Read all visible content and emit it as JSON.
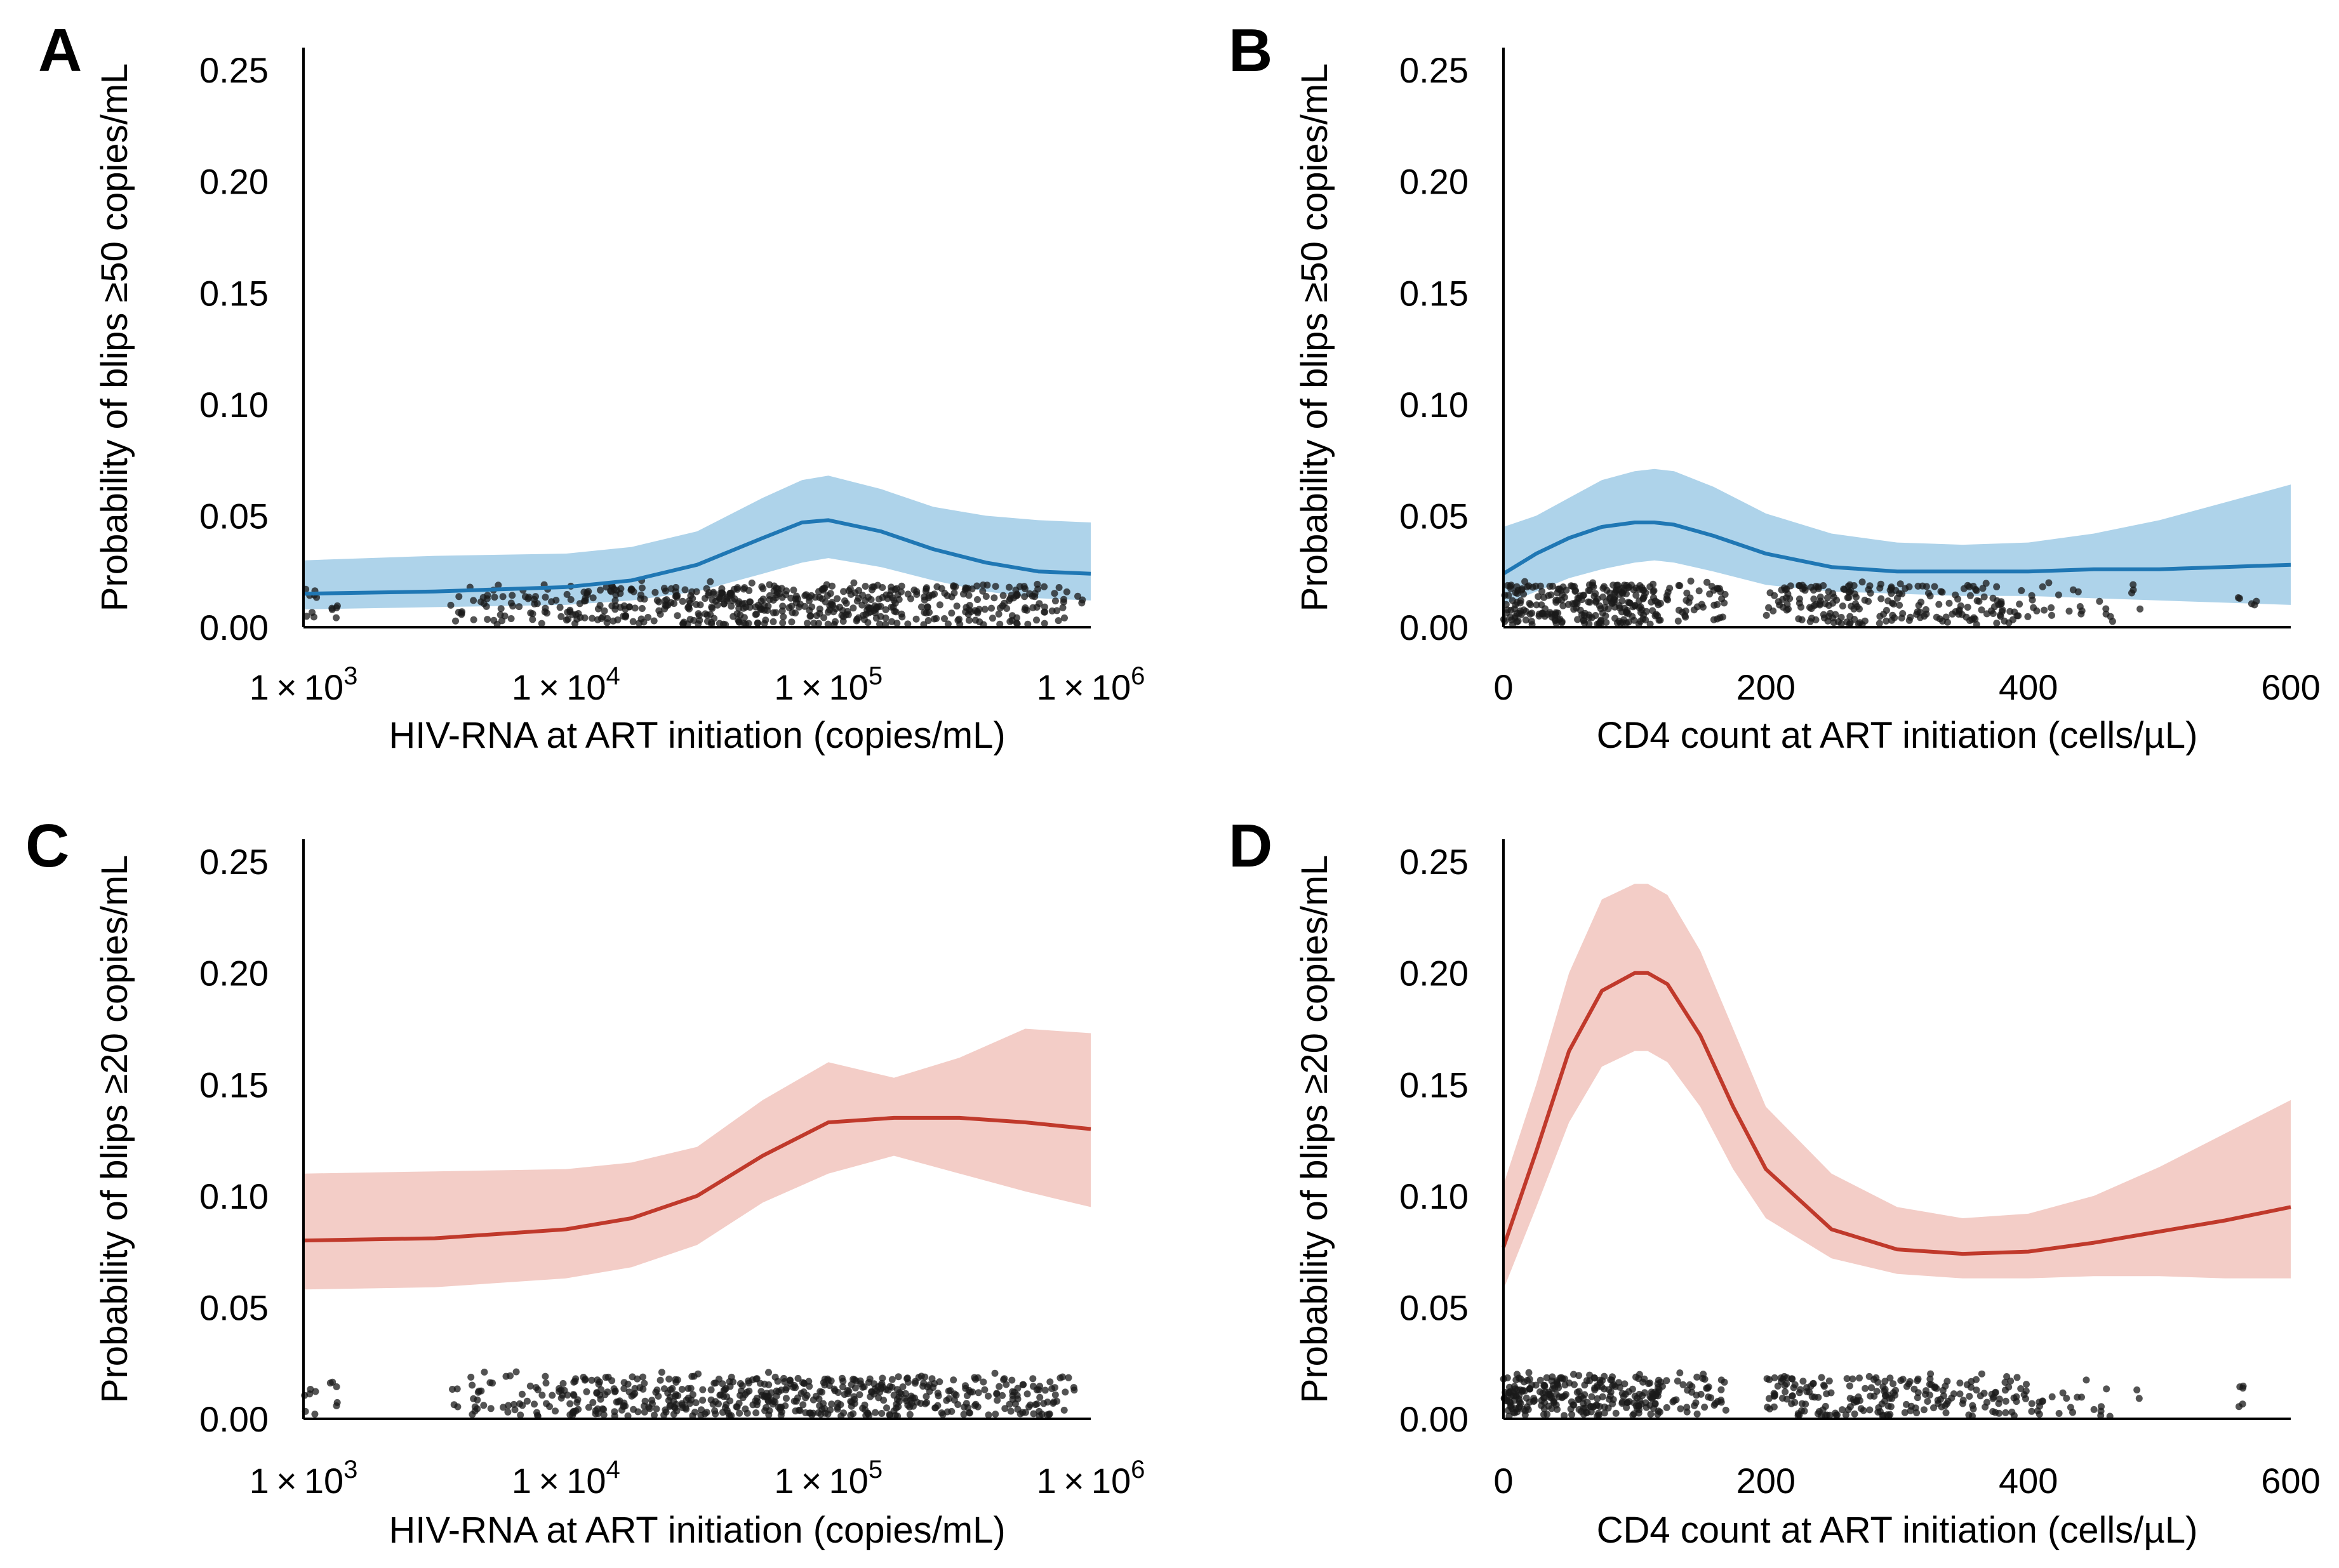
{
  "colors": {
    "blue_line": "#1f77b4",
    "blue_band": "#aed3ea",
    "red_line": "#c0392b",
    "red_band": "#f3cdc7",
    "points": "#1a1a1a",
    "axis": "#000000"
  },
  "chart_data": [
    {
      "panel": "A",
      "type": "line",
      "x_scale": "log10",
      "xlabel": "HIV-RNA at ART initiation (copies/mL)",
      "ylabel": "Probability of blips ≥50 copies/mL",
      "xlim": [
        3,
        6
      ],
      "ylim": [
        0,
        0.26
      ],
      "x_ticks": [
        {
          "value": 3,
          "label_base": "1 × 10",
          "label_exp": "3"
        },
        {
          "value": 4,
          "label_base": "1 × 10",
          "label_exp": "4"
        },
        {
          "value": 5,
          "label_base": "1 × 10",
          "label_exp": "5"
        },
        {
          "value": 6,
          "label_base": "1 × 10",
          "label_exp": "6"
        }
      ],
      "y_ticks": [
        "0.00",
        "0.05",
        "0.10",
        "0.15",
        "0.20",
        "0.25"
      ],
      "y_tick_values": [
        0,
        0.05,
        0.1,
        0.15,
        0.2,
        0.25
      ],
      "series": [
        {
          "name": "fit",
          "color": "#1f77b4",
          "band_color": "#aed3ea",
          "x": [
            3.0,
            3.5,
            4.0,
            4.25,
            4.5,
            4.75,
            4.9,
            5.0,
            5.2,
            5.4,
            5.6,
            5.8,
            6.0
          ],
          "y": [
            0.015,
            0.016,
            0.018,
            0.021,
            0.028,
            0.04,
            0.047,
            0.048,
            0.043,
            0.035,
            0.029,
            0.025,
            0.024
          ],
          "lower": [
            0.008,
            0.009,
            0.01,
            0.012,
            0.016,
            0.024,
            0.029,
            0.031,
            0.027,
            0.021,
            0.016,
            0.013,
            0.012
          ],
          "upper": [
            0.03,
            0.032,
            0.033,
            0.036,
            0.043,
            0.058,
            0.066,
            0.068,
            0.062,
            0.054,
            0.05,
            0.048,
            0.047
          ]
        }
      ],
      "rug": {
        "kind": "log",
        "y_range": [
          0.0,
          0.02
        ],
        "segments": [
          [
            3.0,
            3.05,
            8
          ],
          [
            3.1,
            3.13,
            5
          ],
          [
            3.55,
            3.6,
            4
          ],
          [
            3.6,
            4.0,
            50
          ],
          [
            4.0,
            4.6,
            150
          ],
          [
            4.6,
            5.3,
            220
          ],
          [
            5.3,
            5.9,
            130
          ],
          [
            5.9,
            5.97,
            4
          ]
        ]
      }
    },
    {
      "panel": "B",
      "type": "line",
      "x_scale": "linear",
      "xlabel": "CD4 count at ART initiation (cells/µL)",
      "ylabel": "Probability of blips ≥50 copies/mL",
      "xlim": [
        0,
        600
      ],
      "ylim": [
        0,
        0.26
      ],
      "x_ticks": [
        {
          "value": 0,
          "label": "0"
        },
        {
          "value": 200,
          "label": "200"
        },
        {
          "value": 400,
          "label": "400"
        },
        {
          "value": 600,
          "label": "600"
        }
      ],
      "y_ticks": [
        "0.00",
        "0.05",
        "0.10",
        "0.15",
        "0.20",
        "0.25"
      ],
      "y_tick_values": [
        0,
        0.05,
        0.1,
        0.15,
        0.2,
        0.25
      ],
      "series": [
        {
          "name": "fit",
          "color": "#1f77b4",
          "band_color": "#aed3ea",
          "x": [
            0,
            25,
            50,
            75,
            100,
            115,
            130,
            160,
            200,
            250,
            300,
            350,
            400,
            450,
            500,
            550,
            600
          ],
          "y": [
            0.024,
            0.033,
            0.04,
            0.045,
            0.047,
            0.047,
            0.046,
            0.041,
            0.033,
            0.027,
            0.025,
            0.025,
            0.025,
            0.026,
            0.026,
            0.027,
            0.028
          ],
          "lower": [
            0.01,
            0.016,
            0.022,
            0.026,
            0.029,
            0.03,
            0.029,
            0.025,
            0.019,
            0.016,
            0.015,
            0.014,
            0.014,
            0.013,
            0.012,
            0.011,
            0.01
          ],
          "upper": [
            0.045,
            0.05,
            0.058,
            0.066,
            0.07,
            0.071,
            0.07,
            0.063,
            0.051,
            0.042,
            0.038,
            0.037,
            0.038,
            0.042,
            0.048,
            0.056,
            0.064
          ]
        }
      ],
      "rug": {
        "kind": "linear",
        "y_range": [
          0.0,
          0.02
        ],
        "segments": [
          [
            0,
            120,
            250
          ],
          [
            120,
            170,
            40
          ],
          [
            200,
            300,
            120
          ],
          [
            300,
            400,
            90
          ],
          [
            400,
            490,
            25
          ],
          [
            560,
            575,
            5
          ]
        ]
      }
    },
    {
      "panel": "C",
      "type": "line",
      "x_scale": "log10",
      "xlabel": "HIV-RNA at ART initiation (copies/mL)",
      "ylabel": "Probability of blips ≥20 copies/mL",
      "xlim": [
        3,
        6
      ],
      "ylim": [
        0,
        0.26
      ],
      "x_ticks": [
        {
          "value": 3,
          "label_base": "1 × 10",
          "label_exp": "3"
        },
        {
          "value": 4,
          "label_base": "1 × 10",
          "label_exp": "4"
        },
        {
          "value": 5,
          "label_base": "1 × 10",
          "label_exp": "5"
        },
        {
          "value": 6,
          "label_base": "1 × 10",
          "label_exp": "6"
        }
      ],
      "y_ticks": [
        "0.00",
        "0.05",
        "0.10",
        "0.15",
        "0.20",
        "0.25"
      ],
      "y_tick_values": [
        0,
        0.05,
        0.1,
        0.15,
        0.2,
        0.25
      ],
      "series": [
        {
          "name": "fit",
          "color": "#c0392b",
          "band_color": "#f3cdc7",
          "x": [
            3.0,
            3.5,
            4.0,
            4.25,
            4.5,
            4.75,
            5.0,
            5.25,
            5.5,
            5.75,
            6.0
          ],
          "y": [
            0.08,
            0.081,
            0.085,
            0.09,
            0.1,
            0.118,
            0.133,
            0.135,
            0.135,
            0.133,
            0.13
          ],
          "lower": [
            0.058,
            0.059,
            0.063,
            0.068,
            0.078,
            0.097,
            0.11,
            0.118,
            0.11,
            0.102,
            0.095
          ],
          "upper": [
            0.11,
            0.111,
            0.112,
            0.115,
            0.122,
            0.143,
            0.16,
            0.153,
            0.162,
            0.175,
            0.173
          ]
        }
      ],
      "rug": {
        "kind": "log",
        "y_range": [
          0.0,
          0.02
        ],
        "segments": [
          [
            3.0,
            3.05,
            6
          ],
          [
            3.1,
            3.13,
            5
          ],
          [
            3.55,
            3.6,
            4
          ],
          [
            3.6,
            4.0,
            50
          ],
          [
            4.0,
            4.6,
            150
          ],
          [
            4.6,
            5.3,
            220
          ],
          [
            5.3,
            5.9,
            130
          ],
          [
            5.9,
            5.97,
            4
          ]
        ]
      }
    },
    {
      "panel": "D",
      "type": "line",
      "x_scale": "linear",
      "xlabel": "CD4 count at ART initiation (cells/µL)",
      "ylabel": "Probability of blips ≥20 copies/mL",
      "xlim": [
        0,
        600
      ],
      "ylim": [
        0,
        0.26
      ],
      "x_ticks": [
        {
          "value": 0,
          "label": "0"
        },
        {
          "value": 200,
          "label": "200"
        },
        {
          "value": 400,
          "label": "400"
        },
        {
          "value": 600,
          "label": "600"
        }
      ],
      "y_ticks": [
        "0.00",
        "0.05",
        "0.10",
        "0.15",
        "0.20",
        "0.25"
      ],
      "y_tick_values": [
        0,
        0.05,
        0.1,
        0.15,
        0.2,
        0.25
      ],
      "series": [
        {
          "name": "fit",
          "color": "#c0392b",
          "band_color": "#f3cdc7",
          "x": [
            0,
            25,
            50,
            75,
            100,
            110,
            125,
            150,
            175,
            200,
            250,
            300,
            350,
            400,
            450,
            500,
            550,
            600
          ],
          "y": [
            0.077,
            0.12,
            0.165,
            0.192,
            0.2,
            0.2,
            0.195,
            0.172,
            0.14,
            0.112,
            0.085,
            0.076,
            0.074,
            0.075,
            0.079,
            0.084,
            0.089,
            0.095
          ],
          "lower": [
            0.058,
            0.095,
            0.133,
            0.158,
            0.165,
            0.165,
            0.16,
            0.14,
            0.112,
            0.09,
            0.072,
            0.065,
            0.063,
            0.063,
            0.064,
            0.064,
            0.063,
            0.063
          ],
          "upper": [
            0.105,
            0.15,
            0.2,
            0.233,
            0.24,
            0.24,
            0.235,
            0.21,
            0.175,
            0.14,
            0.11,
            0.095,
            0.09,
            0.092,
            0.1,
            0.113,
            0.128,
            0.143
          ]
        }
      ],
      "rug": {
        "kind": "linear",
        "y_range": [
          0.0,
          0.02
        ],
        "segments": [
          [
            0,
            120,
            250
          ],
          [
            120,
            170,
            40
          ],
          [
            200,
            300,
            120
          ],
          [
            300,
            400,
            90
          ],
          [
            400,
            490,
            25
          ],
          [
            560,
            575,
            5
          ]
        ]
      }
    }
  ]
}
